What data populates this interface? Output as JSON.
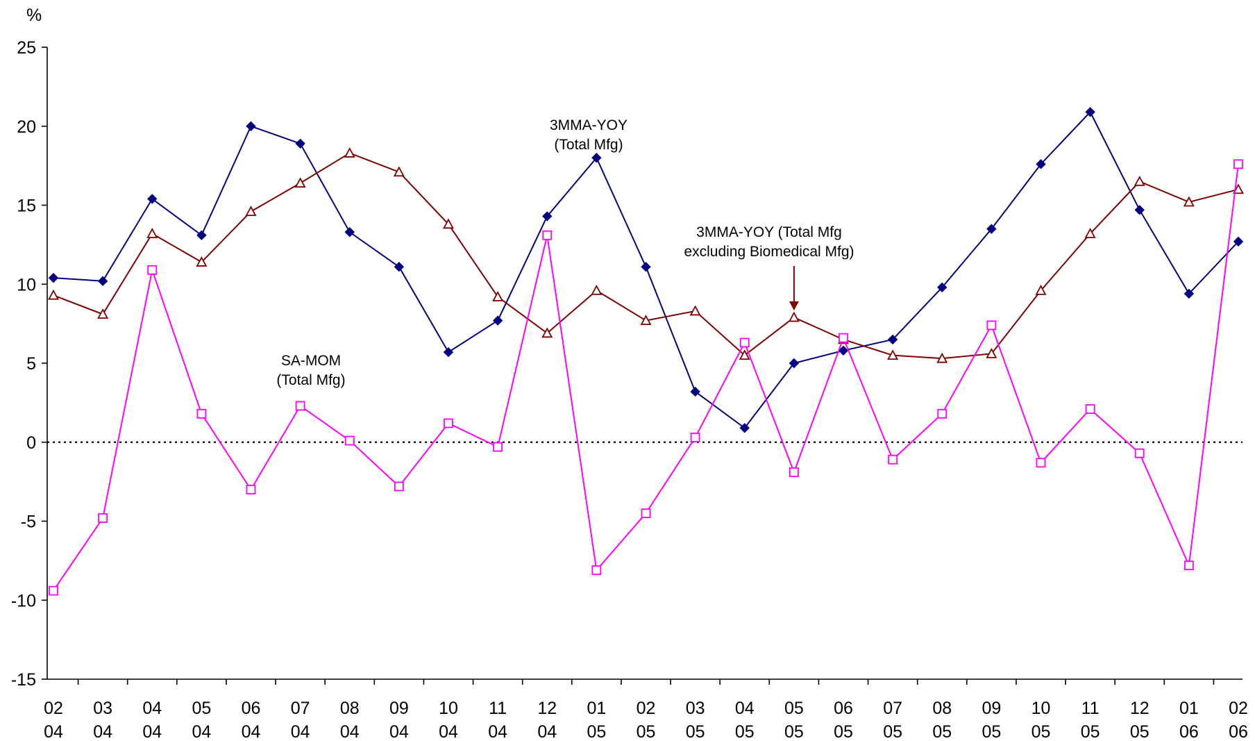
{
  "chart_data": {
    "type": "line",
    "unit_label": "%",
    "ylim": [
      -15,
      25
    ],
    "y_ticks": [
      -15,
      -10,
      -5,
      0,
      5,
      10,
      15,
      20,
      25
    ],
    "grid": false,
    "legend": "none",
    "categories": [
      [
        "02",
        "04"
      ],
      [
        "03",
        "04"
      ],
      [
        "04",
        "04"
      ],
      [
        "05",
        "04"
      ],
      [
        "06",
        "04"
      ],
      [
        "07",
        "04"
      ],
      [
        "08",
        "04"
      ],
      [
        "09",
        "04"
      ],
      [
        "10",
        "04"
      ],
      [
        "11",
        "04"
      ],
      [
        "12",
        "04"
      ],
      [
        "01",
        "05"
      ],
      [
        "02",
        "05"
      ],
      [
        "03",
        "05"
      ],
      [
        "04",
        "05"
      ],
      [
        "05",
        "05"
      ],
      [
        "06",
        "05"
      ],
      [
        "07",
        "05"
      ],
      [
        "08",
        "05"
      ],
      [
        "09",
        "05"
      ],
      [
        "10",
        "05"
      ],
      [
        "11",
        "05"
      ],
      [
        "12",
        "05"
      ],
      [
        "01",
        "06"
      ],
      [
        "02",
        "06"
      ]
    ],
    "series": [
      {
        "values": [
          10.4,
          10.2,
          15.4,
          13.1,
          20.0,
          18.9,
          13.3,
          11.1,
          5.7,
          7.7,
          14.3,
          18.0,
          11.1,
          3.2,
          0.9,
          5.0,
          5.8,
          6.5,
          9.8,
          13.5,
          17.6,
          20.9,
          14.7,
          9.4,
          12.7
        ],
        "color": "#000080",
        "marker": "diamond"
      },
      {
        "values": [
          9.3,
          8.1,
          13.2,
          11.4,
          14.6,
          16.4,
          18.3,
          17.1,
          13.8,
          9.2,
          6.9,
          9.6,
          7.7,
          8.3,
          5.5,
          7.9,
          6.5,
          5.5,
          5.3,
          5.6,
          9.6,
          13.2,
          16.5,
          15.2,
          16.0
        ],
        "color": "#800000",
        "marker": "triangle"
      },
      {
        "values": [
          -9.4,
          -4.8,
          10.9,
          1.8,
          -3.0,
          2.3,
          0.1,
          -2.8,
          1.2,
          -0.3,
          13.1,
          -8.1,
          -4.5,
          0.3,
          6.3,
          -1.9,
          6.6,
          -1.1,
          1.8,
          7.4,
          -1.3,
          2.1,
          -0.7,
          -7.8,
          17.6
        ],
        "color": "#ff00ff",
        "marker": "square"
      }
    ],
    "zero_line": {
      "style": "dotted",
      "color": "#000000"
    },
    "annotations": [
      {
        "lines": [
          "3MMA-YOY",
          "(Total Mfg)"
        ],
        "series_index": 0
      },
      {
        "lines": [
          "3MMA-YOY (Total Mfg",
          "excluding Biomedical Mfg)"
        ],
        "series_index": 1,
        "arrow_to_index": 15,
        "arrow_color": "#800000"
      },
      {
        "lines": [
          "SA-MOM",
          "(Total Mfg)"
        ],
        "series_index": 2
      }
    ]
  }
}
